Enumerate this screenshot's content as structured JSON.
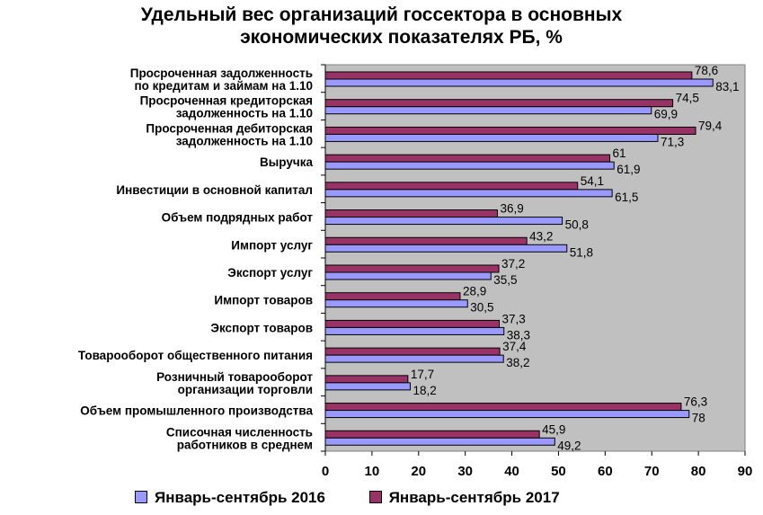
{
  "chart_data": {
    "type": "bar",
    "orientation": "horizontal",
    "title_lines": [
      "Удельный вес организаций госсектора в основных",
      "экономических показателях РБ, %"
    ],
    "categories": [
      [
        "Просроченная задолженность",
        "по кредитам и займам на 1.10"
      ],
      [
        "Просроченная кредиторская",
        "задолженность на 1.10"
      ],
      [
        "Просроченная дебиторская",
        "задолженность на 1.10"
      ],
      [
        "Выручка"
      ],
      [
        "Инвестиции в основной капитал"
      ],
      [
        "Объем подрядных работ"
      ],
      [
        "Импорт услуг"
      ],
      [
        "Экспорт услуг"
      ],
      [
        "Импорт товаров"
      ],
      [
        "Экспорт товаров"
      ],
      [
        "Товарооборот общественного питания"
      ],
      [
        "Розничный товарооборот",
        "организации торговли"
      ],
      [
        "Объем промышленного производства"
      ],
      [
        "Списочная численность",
        "работников в среднем"
      ]
    ],
    "series": [
      {
        "name": "Январь-сентябрь 2017",
        "color": "#993366",
        "values": [
          78.6,
          74.5,
          79.4,
          61,
          54.1,
          36.9,
          43.2,
          37.2,
          28.9,
          37.3,
          37.4,
          17.7,
          76.3,
          45.9
        ],
        "labels": [
          "78,6",
          "74,5",
          "79,4",
          "61",
          "54,1",
          "36,9",
          "43,2",
          "37,2",
          "28,9",
          "37,3",
          "37,4",
          "17,7",
          "76,3",
          "45,9"
        ]
      },
      {
        "name": "Январь-сентябрь 2016",
        "color": "#9999ff",
        "values": [
          83.1,
          69.9,
          71.3,
          61.9,
          61.5,
          50.8,
          51.8,
          35.5,
          30.5,
          38.3,
          38.2,
          18.2,
          78,
          49.2
        ],
        "labels": [
          "83,1",
          "69,9",
          "71,3",
          "61,9",
          "61,5",
          "50,8",
          "51,8",
          "35,5",
          "30,5",
          "38,3",
          "38,2",
          "18,2",
          "78",
          "49,2"
        ]
      }
    ],
    "xlim": [
      0,
      90
    ],
    "xticks": [
      "0",
      "10",
      "20",
      "30",
      "40",
      "50",
      "60",
      "70",
      "80",
      "90"
    ],
    "plot_background": "#c0c0c0",
    "grid": false,
    "legend_position": "bottom",
    "legend": [
      {
        "label": "Январь-сентябрь 2016",
        "color": "#9999ff"
      },
      {
        "label": "Январь-сентябрь 2017",
        "color": "#993366"
      }
    ]
  }
}
